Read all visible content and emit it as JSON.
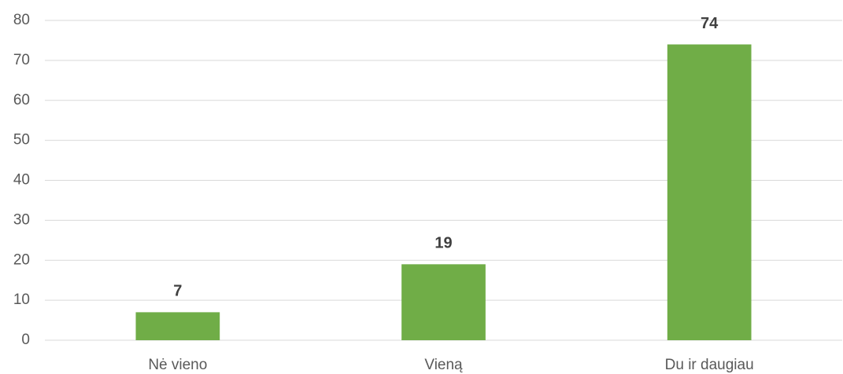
{
  "chart_data": {
    "type": "bar",
    "categories": [
      "Nė vieno",
      "Vieną",
      "Du ir daugiau"
    ],
    "values": [
      7,
      19,
      74
    ],
    "color": "#70ad47",
    "ylim": [
      0,
      80
    ],
    "yticks": [
      0,
      10,
      20,
      30,
      40,
      50,
      60,
      70,
      80
    ],
    "grid": true
  }
}
